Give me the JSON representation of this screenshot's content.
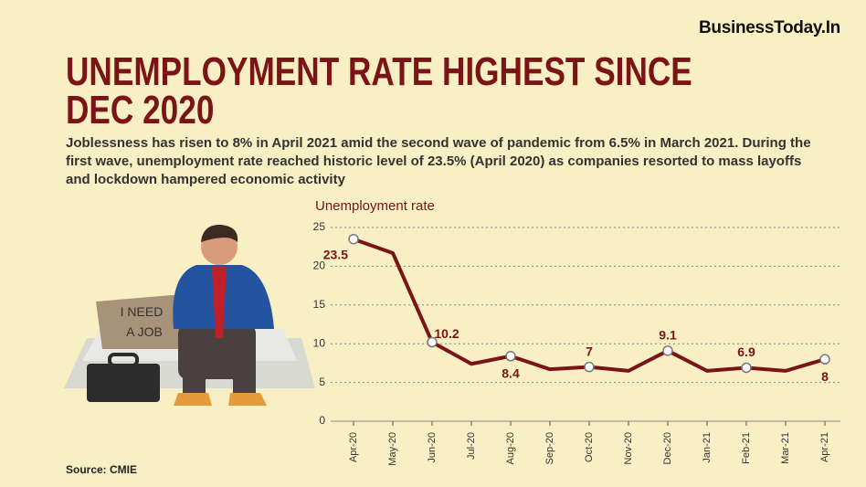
{
  "brand": "BusinessToday.In",
  "sign": [
    "I NEED",
    "A JOB"
  ],
  "source": "Source: CMIE",
  "chart_data": {
    "type": "line",
    "title": "UNEMPLOYMENT RATE HIGHEST SINCE DEC 2020",
    "subtitle": "Joblessness has risen to 8% in April 2021 amid the second wave of pandemic from 6.5% in March 2021. During the first wave, unemployment rate reached historic level of 23.5% (April 2020) as companies resorted to mass layoffs and lockdown hampered economic activity",
    "y_label": "Unemployment rate",
    "categories": [
      "Apr-20",
      "May-20",
      "Jun-20",
      "Jul-20",
      "Aug-20",
      "Sep-20",
      "Oct-20",
      "Nov-20",
      "Dec-20",
      "Jan-21",
      "Feb-21",
      "Mar-21",
      "Apr-21"
    ],
    "values": [
      23.5,
      21.7,
      10.2,
      7.4,
      8.4,
      6.7,
      7,
      6.5,
      9.1,
      6.5,
      6.9,
      6.5,
      8
    ],
    "color": "#7b1416",
    "label_step": 2,
    "ylim": [
      0,
      25
    ],
    "yticks": [
      0,
      5,
      10,
      15,
      20,
      25
    ],
    "grid": true
  }
}
